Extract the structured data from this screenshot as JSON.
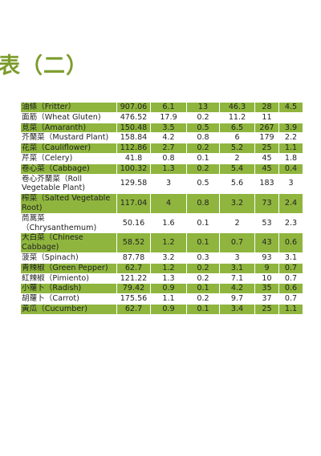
{
  "header": {
    "title": "表（二）"
  },
  "table": {
    "rows": [
      [
        "油條（Fritter）",
        "907.06",
        "6.1",
        "13",
        "46.3",
        "28",
        "4.5"
      ],
      [
        "面筋（Wheat Gluten)",
        "476.52",
        "17.9",
        "0.2",
        "11.2",
        "11",
        null
      ],
      [
        "莧菜（Amaranth)",
        "150.48",
        "3.5",
        "0.5",
        "6.5",
        "267",
        "3.9"
      ],
      [
        "芥蘭菜（Mustard Plant)",
        "158.84",
        "4.2",
        "0.8",
        "6",
        "179",
        "2.2"
      ],
      [
        "花菜（Cauliflower)",
        "112.86",
        "2.7",
        "0.2",
        "5.2",
        "25",
        "1.1"
      ],
      [
        "芹菜（Celery)",
        "41.8",
        "0.8",
        "0.1",
        "2",
        "45",
        "1.8"
      ],
      [
        "卷心菜（Cabbage)",
        "100.32",
        "1.3",
        "0.2",
        "5.4",
        "45",
        "0.4"
      ],
      [
        "卷心芥蘭菜（Roll Vegetable Plant)",
        "129.58",
        "3",
        "0.5",
        "5.6",
        "183",
        "3"
      ],
      [
        "榨菜（Salted Vegetable Root)",
        "117.04",
        "4",
        "0.8",
        "3.2",
        "73",
        "2.4"
      ],
      [
        "茼蒿菜（Chrysanthemum)",
        "50.16",
        "1.6",
        "0.1",
        "2",
        "53",
        "2.3"
      ],
      [
        "大白菜（Chinese Cabbage)",
        "58.52",
        "1.2",
        "0.1",
        "0.7",
        "43",
        "0.6"
      ],
      [
        "菠菜（Spinach)",
        "87.78",
        "3.2",
        "0.3",
        "3",
        "93",
        "3.1"
      ],
      [
        "青辣椒（Green Pepper)",
        "62.7",
        "1.2",
        "0.2",
        "3.1",
        "9",
        "0.7"
      ],
      [
        "紅辣椒（Pimiento)",
        "121.22",
        "1.3",
        "0.2",
        "7.1",
        "10",
        "0.7"
      ],
      [
        "小蘿卜（Radish)",
        "79.42",
        "0.9",
        "0.1",
        "4.2",
        "35",
        "0.6"
      ],
      [
        "胡蘿卜（Carrot)",
        "175.56",
        "1.1",
        "0.2",
        "9.7",
        "37",
        "0.7"
      ],
      [
        "黃瓜（Cucumber)",
        "62.7",
        "0.9",
        "0.1",
        "3.4",
        "25",
        "1.1"
      ]
    ]
  }
}
